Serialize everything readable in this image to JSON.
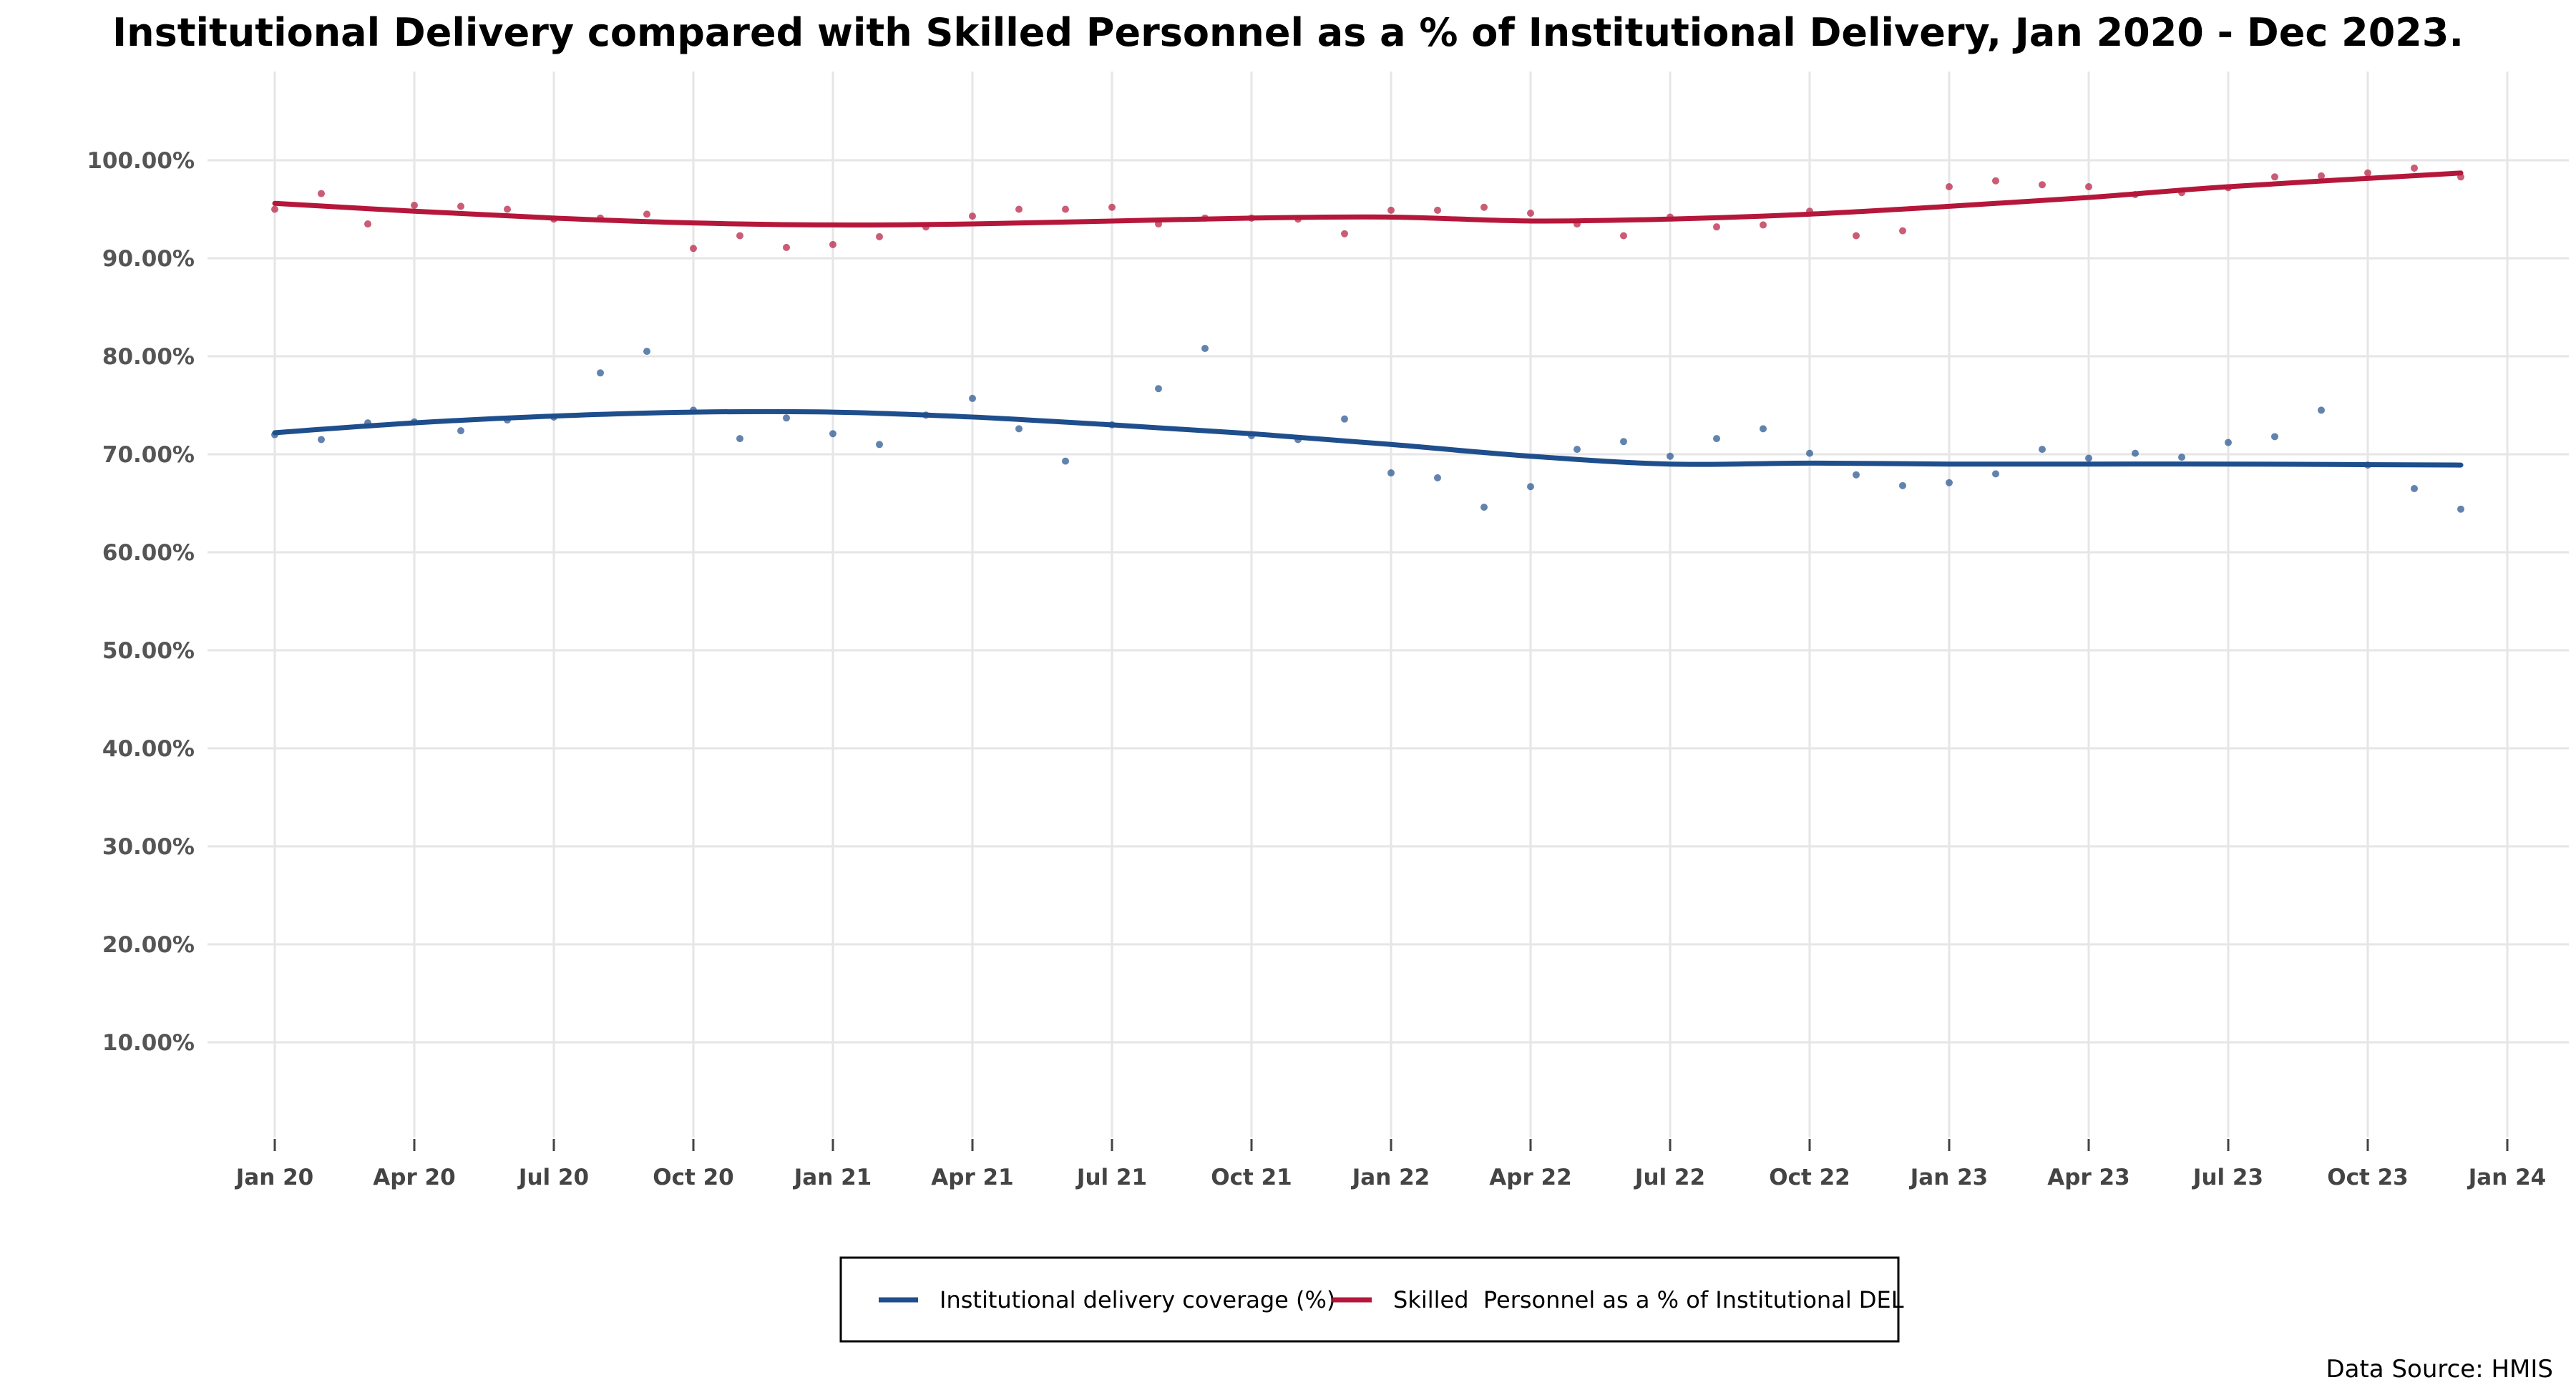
{
  "chart_data": {
    "type": "line",
    "title": "Institutional Delivery compared with Skilled Personnel as a % of Institutional Delivery, Jan 2020 - Dec 2023.",
    "xlabel": "",
    "ylabel": "",
    "x_ticks": [
      "Jan 20",
      "Apr 20",
      "Jul 20",
      "Oct 20",
      "Jan 21",
      "Apr 21",
      "Jul 21",
      "Oct 21",
      "Jan 22",
      "Apr 22",
      "Jul 22",
      "Oct 22",
      "Jan 23",
      "Apr 23",
      "Jul 23",
      "Oct 23",
      "Jan 24"
    ],
    "x_start": "2020-01",
    "y_ticks": [
      10,
      20,
      30,
      40,
      50,
      60,
      70,
      80,
      90,
      100
    ],
    "y_tick_labels": [
      "10.00%",
      "20.00%",
      "30.00%",
      "40.00%",
      "50.00%",
      "60.00%",
      "70.00%",
      "80.00%",
      "90.00%",
      "100.00%"
    ],
    "ylim": [
      0,
      103
    ],
    "grid": true,
    "legend_position": "bottom",
    "series": [
      {
        "name": "Institutional delivery coverage (%)",
        "color": "#1f4e8c",
        "points": [
          72.0,
          71.5,
          73.2,
          73.3,
          72.4,
          73.5,
          73.8,
          78.3,
          80.5,
          74.5,
          71.6,
          73.7,
          72.1,
          71.0,
          74.0,
          75.7,
          72.6,
          69.3,
          73.0,
          76.7,
          80.8,
          71.9,
          71.5,
          73.6,
          68.1,
          67.6,
          64.6,
          66.7,
          70.5,
          71.3,
          69.8,
          71.6,
          72.6,
          70.1,
          67.9,
          66.8,
          67.1,
          68.0,
          70.5,
          69.6,
          70.1,
          69.7,
          71.2,
          71.8,
          74.5,
          68.9,
          66.5,
          64.4
        ],
        "trend": [
          72.2,
          73.2,
          73.9,
          74.3,
          74.3,
          73.8,
          73.0,
          72.1,
          71.0,
          69.8,
          69.0,
          69.1,
          69.0,
          69.0,
          69.0,
          68.9
        ]
      },
      {
        "name": "Skilled  Personnel as a % of Institutional DEL",
        "color": "#b5173b",
        "points": [
          95.0,
          96.6,
          93.5,
          95.4,
          95.3,
          95.0,
          94.0,
          94.1,
          94.5,
          91.0,
          92.3,
          91.1,
          91.4,
          92.2,
          93.2,
          94.3,
          95.0,
          95.0,
          95.2,
          93.5,
          94.1,
          94.1,
          94.0,
          92.5,
          94.9,
          94.9,
          95.2,
          94.6,
          93.5,
          92.3,
          94.2,
          93.2,
          93.4,
          94.8,
          92.3,
          92.8,
          97.3,
          97.9,
          97.5,
          97.3,
          96.5,
          96.7,
          97.2,
          98.3,
          98.4,
          98.7,
          99.2,
          98.3
        ],
        "trend": [
          95.6,
          94.8,
          94.1,
          93.6,
          93.4,
          93.5,
          93.8,
          94.1,
          94.2,
          93.8,
          94.0,
          94.5,
          95.3,
          96.2,
          97.3,
          98.7
        ]
      }
    ],
    "source": "Data Source: HMIS"
  }
}
